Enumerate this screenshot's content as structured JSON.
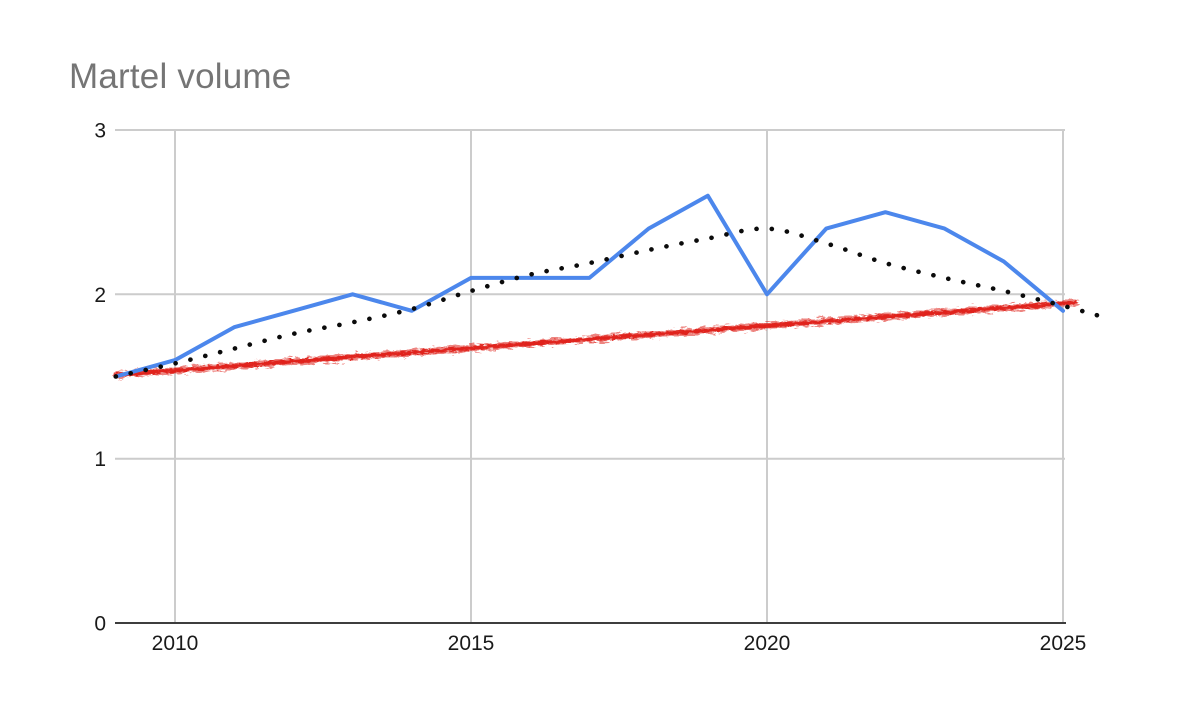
{
  "chart": {
    "title": "Martel volume",
    "colors": {
      "background": "#ffffff",
      "title_text": "#757575",
      "tick_text": "#1a1a1a",
      "gridline": "#cccccc",
      "axis_line": "#3d3d3d",
      "series_main": "#4c87ec",
      "trendline_dotted": "#0b0b0b",
      "trendline_scribble": "#e0231b"
    }
  },
  "chart_data": {
    "type": "line",
    "title": "Martel volume",
    "xlabel": "",
    "ylabel": "",
    "legend": "none",
    "grid": true,
    "ylim": [
      0,
      3
    ],
    "xlim": [
      2009,
      2026
    ],
    "x_tick_labels": [
      "2010",
      "2015",
      "2020",
      "2025"
    ],
    "x_tick_years": [
      2010,
      2015,
      2020,
      2025
    ],
    "y_tick_labels": [
      "0",
      "1",
      "2",
      "3"
    ],
    "y_tick_values": [
      0,
      1,
      2,
      3
    ],
    "x": [
      2009,
      2010,
      2011,
      2012,
      2013,
      2014,
      2015,
      2016,
      2017,
      2018,
      2019,
      2020,
      2021,
      2022,
      2023,
      2024,
      2025
    ],
    "series": [
      {
        "name": "volume (blue solid line)",
        "style": "solid",
        "color": "#4c87ec",
        "values": [
          1.5,
          1.6,
          1.8,
          1.9,
          2.0,
          1.9,
          2.1,
          2.1,
          2.1,
          2.4,
          2.6,
          2.0,
          2.4,
          2.5,
          2.4,
          2.2,
          1.9
        ]
      },
      {
        "name": "trendline (black dotted curve)",
        "style": "dotted",
        "color": "#0b0b0b",
        "x": [
          2009,
          2010,
          2011,
          2012,
          2013,
          2014,
          2015,
          2016,
          2017,
          2018,
          2019,
          2020,
          2021,
          2022,
          2023,
          2024,
          2025,
          2025.7
        ],
        "values": [
          1.5,
          1.58,
          1.67,
          1.76,
          1.83,
          1.91,
          2.02,
          2.12,
          2.19,
          2.27,
          2.34,
          2.4,
          2.31,
          2.19,
          2.1,
          2.02,
          1.93,
          1.86
        ]
      },
      {
        "name": "trend line (red scribble straight line)",
        "style": "scribble",
        "color": "#e0231b",
        "x": [
          2009,
          2025.2
        ],
        "values": [
          1.51,
          1.95
        ]
      }
    ]
  }
}
